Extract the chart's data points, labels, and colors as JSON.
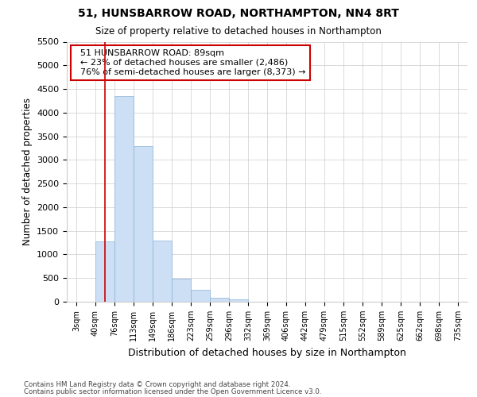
{
  "title1": "51, HUNSBARROW ROAD, NORTHAMPTON, NN4 8RT",
  "title2": "Size of property relative to detached houses in Northampton",
  "xlabel": "Distribution of detached houses by size in Northampton",
  "ylabel": "Number of detached properties",
  "footnote1": "Contains HM Land Registry data © Crown copyright and database right 2024.",
  "footnote2": "Contains public sector information licensed under the Open Government Licence v3.0.",
  "annotation_title": "51 HUNSBARROW ROAD: 89sqm",
  "annotation_line1": "← 23% of detached houses are smaller (2,486)",
  "annotation_line2": "76% of semi-detached houses are larger (8,373) →",
  "bar_color": "#ccdff5",
  "bar_edge_color": "#8ab4d8",
  "red_line_color": "#cc0000",
  "annotation_box_edge": "#cc0000",
  "grid_color": "#cccccc",
  "background_color": "#ffffff",
  "categories": [
    "3sqm",
    "40sqm",
    "76sqm",
    "113sqm",
    "149sqm",
    "186sqm",
    "223sqm",
    "259sqm",
    "296sqm",
    "332sqm",
    "369sqm",
    "406sqm",
    "442sqm",
    "479sqm",
    "515sqm",
    "552sqm",
    "589sqm",
    "625sqm",
    "662sqm",
    "698sqm",
    "735sqm"
  ],
  "values": [
    0,
    1270,
    4350,
    3300,
    1300,
    480,
    250,
    80,
    55,
    0,
    0,
    0,
    0,
    0,
    0,
    0,
    0,
    0,
    0,
    0,
    0
  ],
  "red_line_x": 1.5,
  "ylim": [
    0,
    5500
  ],
  "yticks": [
    0,
    500,
    1000,
    1500,
    2000,
    2500,
    3000,
    3500,
    4000,
    4500,
    5000,
    5500
  ]
}
